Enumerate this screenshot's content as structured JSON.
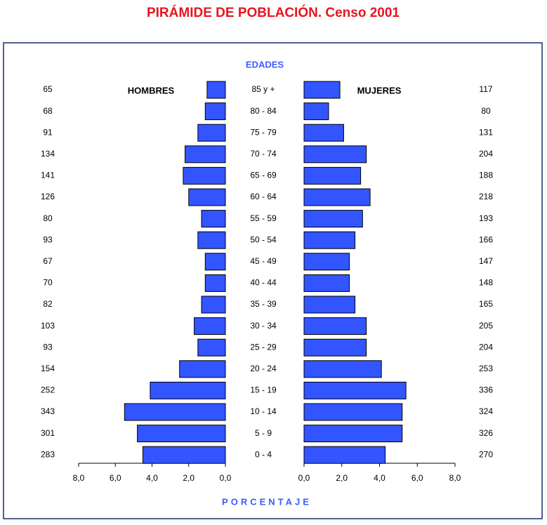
{
  "chart_data": {
    "type": "pyramid",
    "title": "PIRÁMIDE DE POBLACIÓN. Censo 2001",
    "category_label": "EDADES",
    "x_label": "PORCENTAJE",
    "categories": [
      "85 y +",
      "80 - 84",
      "75 - 79",
      "70 - 74",
      "65 - 69",
      "60 - 64",
      "55 - 59",
      "50 - 54",
      "45 - 49",
      "40 - 44",
      "35 - 39",
      "30 - 34",
      "25 - 29",
      "20 - 24",
      "15 - 19",
      "10 - 14",
      "5 - 9",
      "0 - 4"
    ],
    "series": [
      {
        "name": "HOMBRES",
        "color": "#3355ff",
        "values": [
          1.0,
          1.1,
          1.5,
          2.2,
          2.3,
          2.0,
          1.3,
          1.5,
          1.1,
          1.1,
          1.3,
          1.7,
          1.5,
          2.5,
          4.1,
          5.5,
          4.8,
          4.5
        ],
        "counts": [
          65,
          68,
          91,
          134,
          141,
          126,
          80,
          93,
          67,
          70,
          82,
          103,
          93,
          154,
          252,
          343,
          301,
          283
        ]
      },
      {
        "name": "MUJERES",
        "color": "#3355ff",
        "values": [
          1.9,
          1.3,
          2.1,
          3.3,
          3.0,
          3.5,
          3.1,
          2.7,
          2.4,
          2.4,
          2.7,
          3.3,
          3.3,
          4.1,
          5.4,
          5.2,
          5.2,
          4.3
        ],
        "counts": [
          117,
          80,
          131,
          204,
          188,
          218,
          193,
          166,
          147,
          148,
          165,
          205,
          204,
          253,
          336,
          324,
          326,
          270
        ]
      }
    ],
    "xlim": [
      0,
      8
    ],
    "xticks": [
      {
        "value": 0,
        "label": "0,0"
      },
      {
        "value": 2,
        "label": "2,0"
      },
      {
        "value": 4,
        "label": "4,0"
      },
      {
        "value": 6,
        "label": "6,0"
      },
      {
        "value": 8,
        "label": "8,0"
      }
    ]
  }
}
